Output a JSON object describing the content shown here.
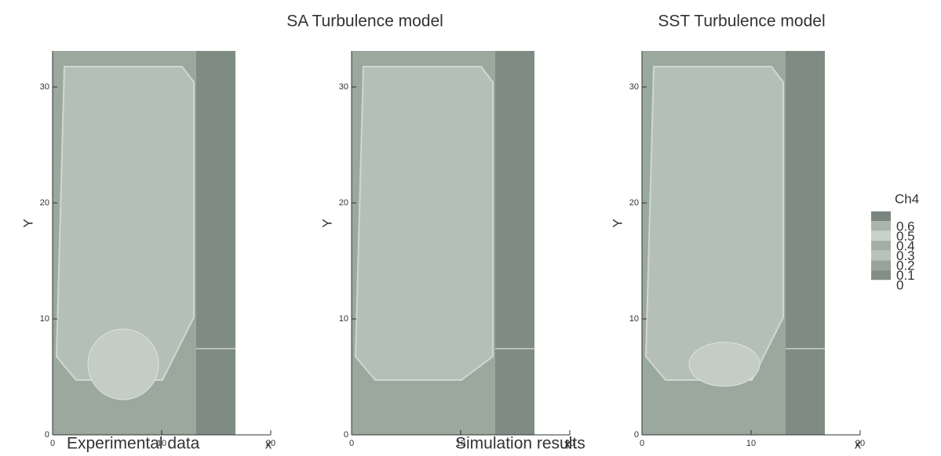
{
  "panels": [
    {
      "x_label": "x",
      "y_label": "Y",
      "xticks": [
        0,
        10,
        20
      ],
      "yticks": [
        0,
        10,
        20,
        30
      ],
      "caption": "Experimental data"
    },
    {
      "title": "SA Turbulence model",
      "x_label": "x",
      "y_label": "Y",
      "xticks": [
        0,
        10,
        20
      ],
      "yticks": [
        0,
        10,
        20,
        30
      ]
    },
    {
      "title": "SST Turbulence model",
      "x_label": "x",
      "y_label": "Y",
      "xticks": [
        0,
        10,
        20
      ],
      "yticks": [
        0,
        10,
        20,
        30
      ]
    }
  ],
  "caption": "Simulation results",
  "colorbar": {
    "title": "Ch4",
    "levels": [
      0.6,
      0.5,
      0.4,
      0.3,
      0.2,
      0.1,
      0
    ]
  }
}
